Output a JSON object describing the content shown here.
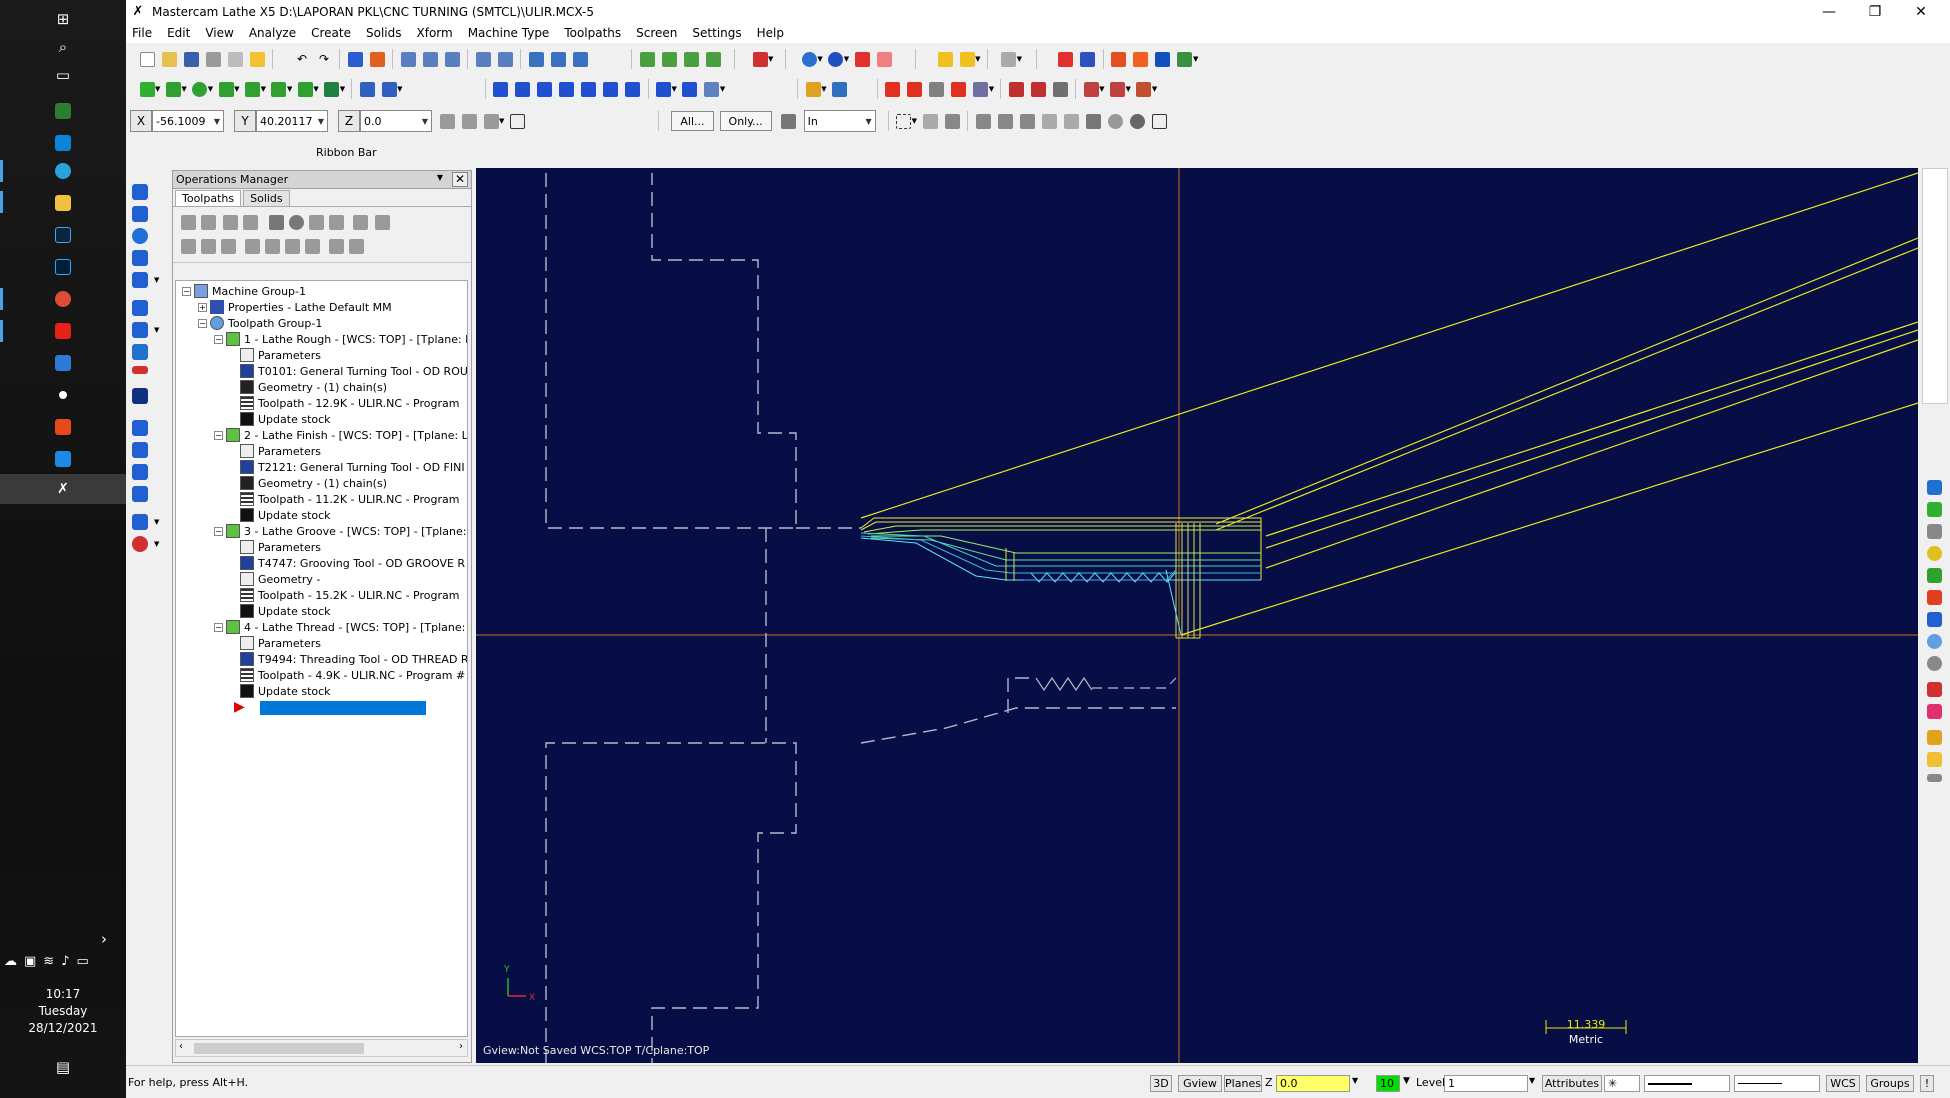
{
  "taskbar": {
    "time": "10:17",
    "day": "Tuesday",
    "date": "28/12/2021"
  },
  "window": {
    "title": "Mastercam Lathe X5  D:\\LAPORAN PKL\\CNC TURNING (SMTCL)\\ULIR.MCX-5",
    "minimize": "—",
    "maximize": "❐",
    "close": "✕"
  },
  "menu": [
    "File",
    "Edit",
    "View",
    "Analyze",
    "Create",
    "Solids",
    "Xform",
    "Machine Type",
    "Toolpaths",
    "Screen",
    "Settings",
    "Help"
  ],
  "coords": {
    "x_label": "X",
    "x_value": "-56.1009",
    "y_label": "Y",
    "y_value": "40.20117",
    "z_label": "Z",
    "z_value": "0.0"
  },
  "select_bar": {
    "all_label": "All...",
    "only_label": "Only...",
    "mode_value": "In"
  },
  "ribbon": {
    "label": "Ribbon Bar"
  },
  "ops": {
    "title": "Operations Manager",
    "tab_toolpaths": "Toolpaths",
    "tab_solids": "Solids",
    "tree": {
      "machine_group": "Machine Group-1",
      "properties": "Properties - Lathe Default MM",
      "toolpath_group": "Toolpath Group-1",
      "op1": "1 - Lathe Rough - [WCS: TOP] - [Tplane: L",
      "op1_params": "Parameters",
      "op1_tool": "T0101: General Turning Tool - OD ROU",
      "op1_geom": "Geometry - (1) chain(s)",
      "op1_tp": "Toolpath - 12.9K - ULIR.NC - Program",
      "op1_stock": "Update stock",
      "op2": "2 - Lathe Finish - [WCS: TOP] - [Tplane: LA",
      "op2_params": "Parameters",
      "op2_tool": "T2121: General Turning Tool - OD FINI",
      "op2_geom": "Geometry - (1) chain(s)",
      "op2_tp": "Toolpath - 11.2K - ULIR.NC - Program",
      "op2_stock": "Update stock",
      "op3": "3 - Lathe Groove - [WCS: TOP] - [Tplane: I",
      "op3_params": "Parameters",
      "op3_tool": "T4747: Grooving Tool - OD GROOVE R",
      "op3_geom": "Geometry -",
      "op3_tp": "Toolpath - 15.2K - ULIR.NC - Program",
      "op3_stock": "Update stock",
      "op4": "4 - Lathe Thread - [WCS: TOP] - [Tplane: L",
      "op4_params": "Parameters",
      "op4_tool": "T9494: Threading Tool - OD THREAD R",
      "op4_tp": "Toolpath - 4.9K - ULIR.NC - Program #",
      "op4_stock": "Update stock"
    }
  },
  "viewport": {
    "status": "Gview:Not Saved    WCS:TOP    T/Cplane:TOP",
    "scale_value": "11.339",
    "scale_unit": "Metric",
    "axis_y": "Y",
    "axis_x": "X"
  },
  "statusbar": {
    "help": "For help, press Alt+H.",
    "btn_3d": "3D",
    "btn_gview": "Gview",
    "btn_planes": "Planes",
    "z_label": "Z",
    "z_value": "0.0",
    "color_value": "10",
    "level_label": "Level",
    "level_value": "1",
    "attributes": "Attributes",
    "wcs": "WCS",
    "groups": "Groups",
    "bang": "!"
  },
  "colors": {
    "viewport_bg": "#070d45",
    "selection": "#0078d7",
    "z_input_bg": "#ffff66",
    "color_box": "#00dd00"
  }
}
